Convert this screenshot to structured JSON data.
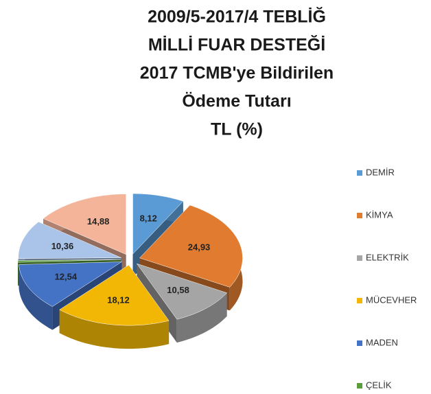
{
  "chart_data": {
    "type": "pie3d",
    "title": [
      "2009/5-2017/4 TEBLİĞ",
      "MİLLİ FUAR DESTEĞİ",
      "2017 TCMB'ye Bildirilen",
      "Ödeme Tutarı",
      "TL (%)"
    ],
    "categories": [
      "DEMİR",
      "KİMYA",
      "ELEKTRİK",
      "MÜCEVHER",
      "MADEN",
      "ÇELİK",
      null,
      null
    ],
    "values": [
      8.12,
      24.93,
      10.58,
      18.12,
      12.54,
      0.47,
      10.36,
      14.88
    ],
    "value_labels": [
      "8,12",
      "24,93",
      "10,58",
      "18,12",
      "12,54",
      "0,47",
      "10,36",
      "14,88"
    ],
    "colors": [
      "#5b9bd5",
      "#e07b30",
      "#a5a5a5",
      "#f2b705",
      "#4472c4",
      "#5a9e3c",
      "#a9c4e8",
      "#f4b49a"
    ],
    "legend": "right"
  }
}
